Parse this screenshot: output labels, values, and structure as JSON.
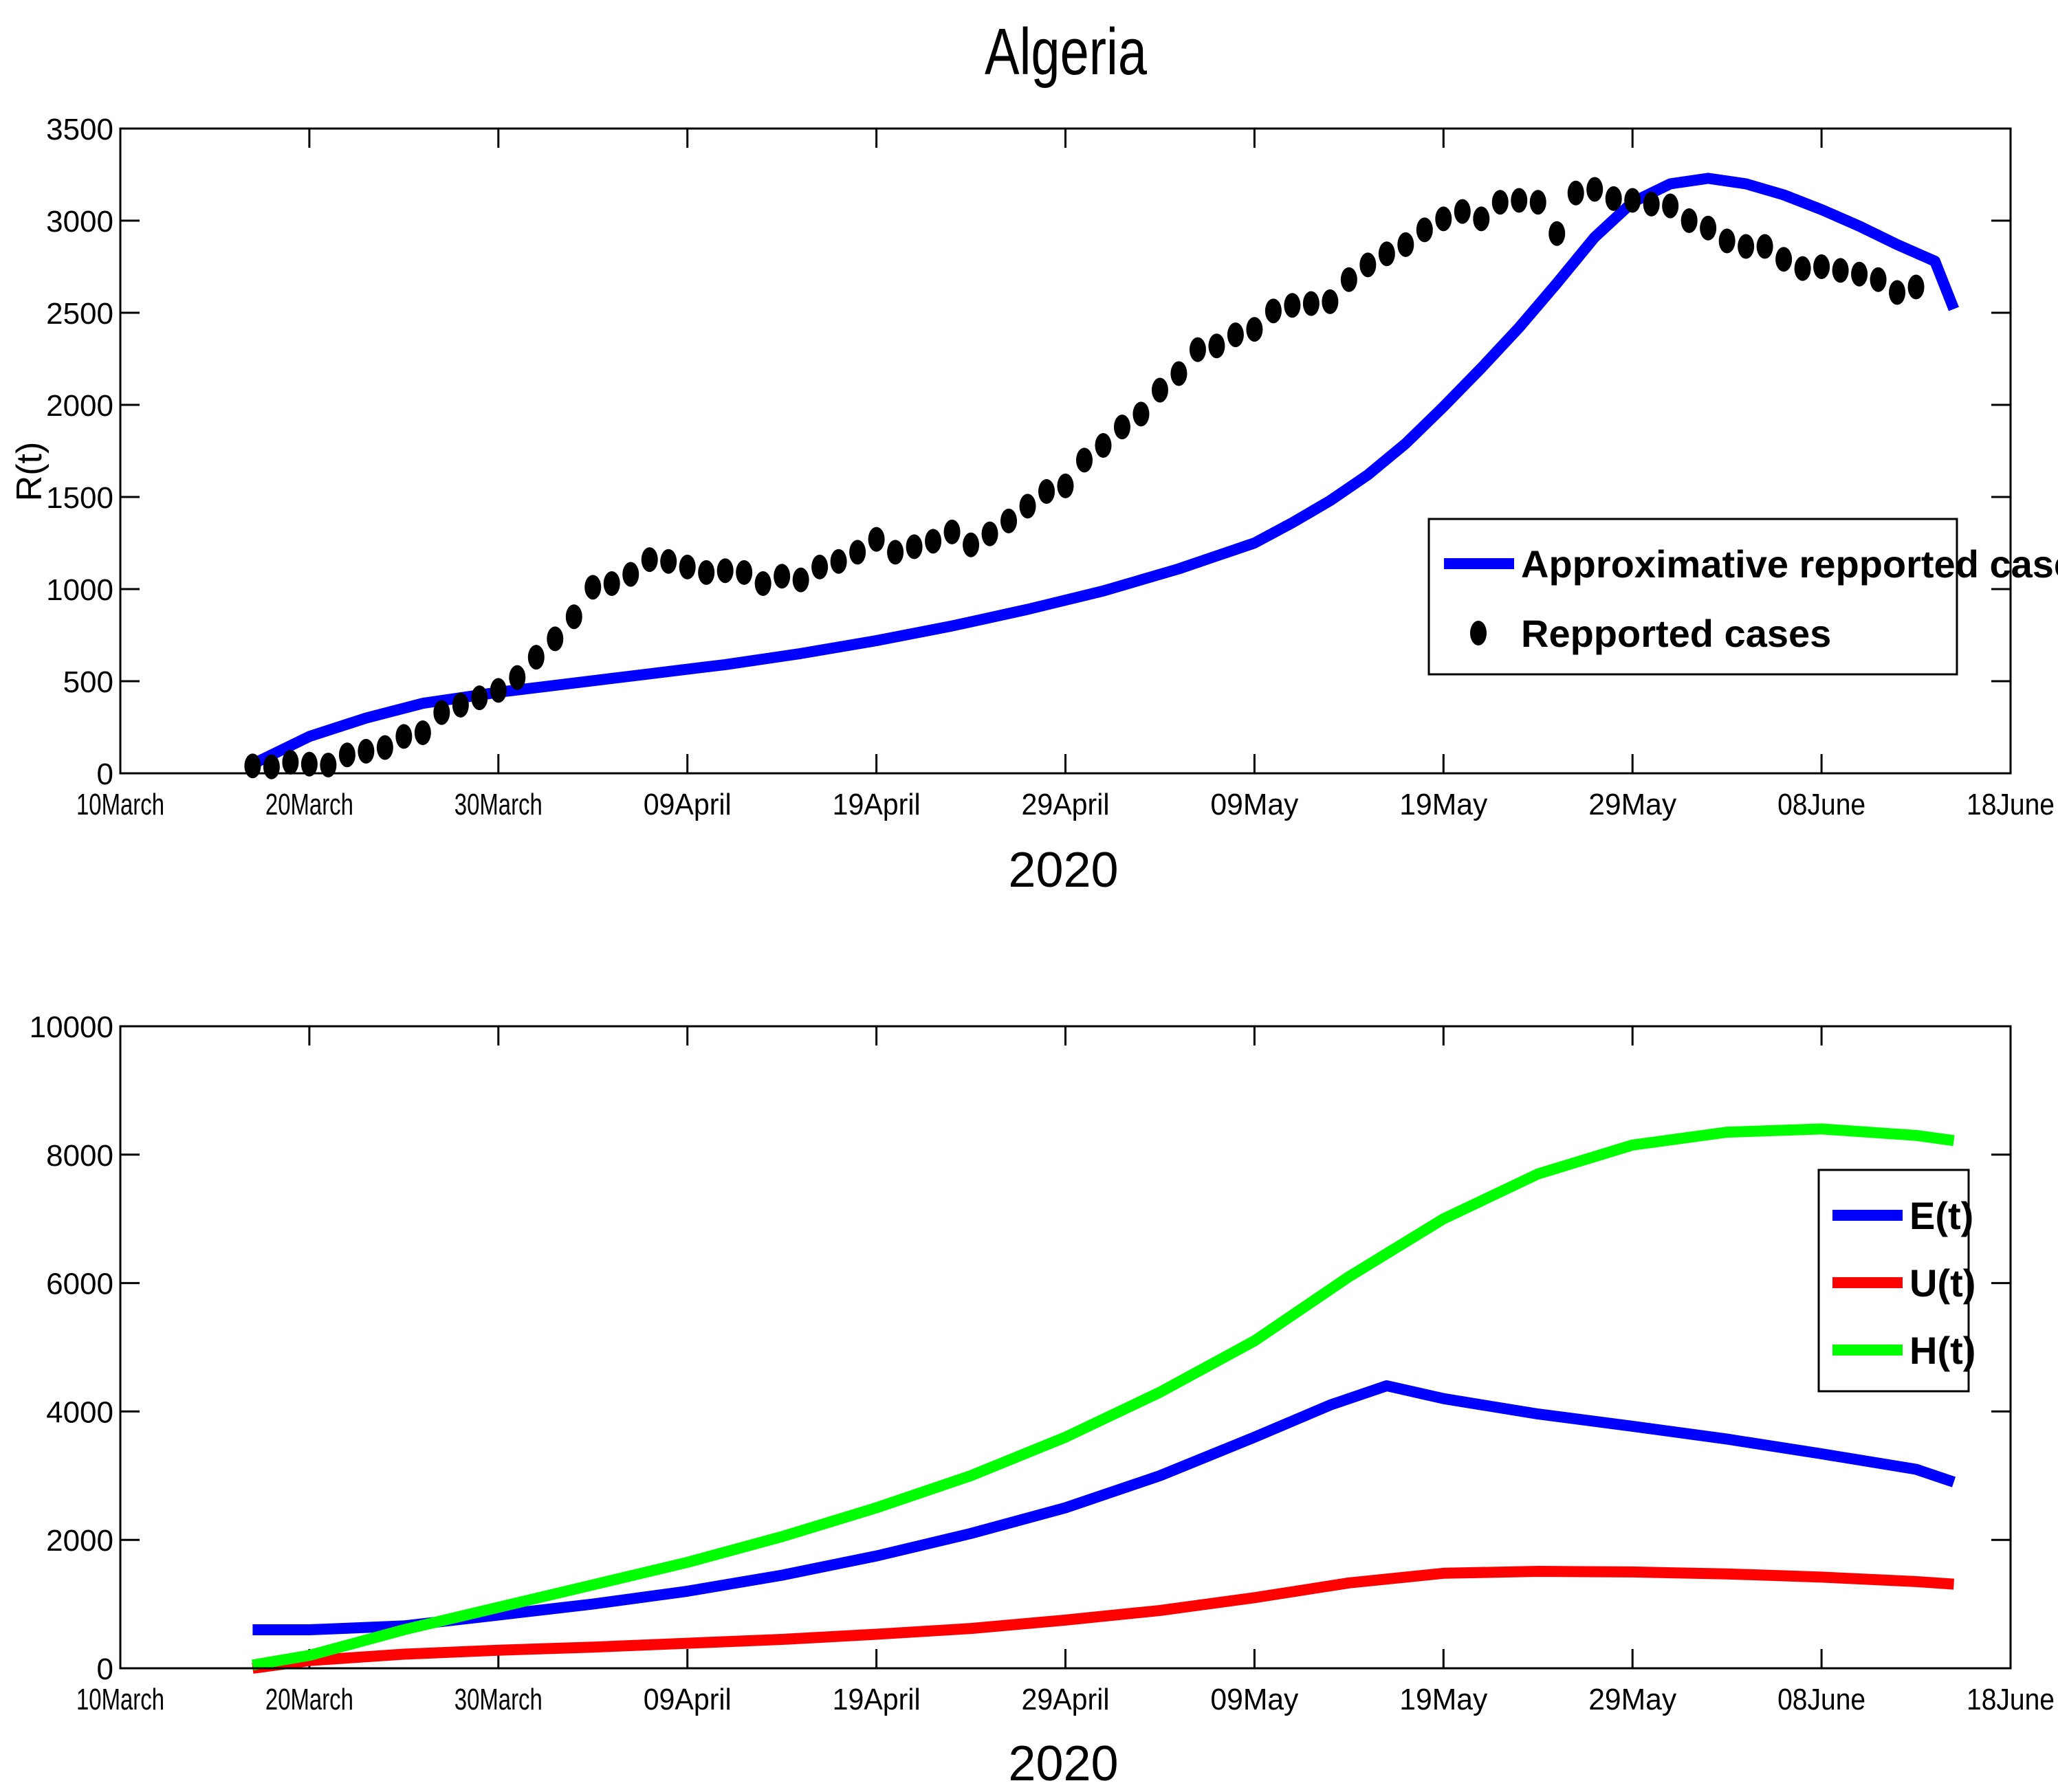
{
  "title": "Algeria",
  "x_categories": [
    "10March",
    "20March",
    "30March",
    "09April",
    "19April",
    "29April",
    "09May",
    "19May",
    "29May",
    "08June",
    "18June"
  ],
  "chart_data": [
    {
      "type": "line",
      "ylabel": "R(t)",
      "xlabel": "2020",
      "xlim": [
        0,
        100
      ],
      "ylim": [
        0,
        3500
      ],
      "yticks": [
        0,
        500,
        1000,
        1500,
        2000,
        2500,
        3000,
        3500
      ],
      "legend_position": "right",
      "series": [
        {
          "name": "Approximative repported cases",
          "style": "line",
          "color": "#0000ff",
          "x": [
            7,
            10,
            13,
            16,
            20,
            24,
            28,
            32,
            36,
            40,
            44,
            48,
            52,
            56,
            60,
            62,
            64,
            66,
            68,
            70,
            72,
            74,
            76,
            78,
            80,
            82,
            84,
            86,
            88,
            90,
            92,
            94,
            96,
            97
          ],
          "y": [
            50,
            200,
            300,
            380,
            440,
            490,
            540,
            590,
            650,
            720,
            800,
            890,
            990,
            1110,
            1250,
            1360,
            1480,
            1620,
            1790,
            1990,
            2200,
            2420,
            2660,
            2910,
            3100,
            3200,
            3230,
            3200,
            3140,
            3060,
            2970,
            2870,
            2780,
            2520
          ]
        },
        {
          "name": "Repported cases",
          "style": "markers",
          "color": "#000000",
          "x": [
            7,
            8,
            9,
            10,
            11,
            12,
            13,
            14,
            15,
            16,
            17,
            18,
            19,
            20,
            21,
            22,
            23,
            24,
            25,
            26,
            27,
            28,
            29,
            30,
            31,
            32,
            33,
            34,
            35,
            36,
            37,
            38,
            39,
            40,
            41,
            42,
            43,
            44,
            45,
            46,
            47,
            48,
            49,
            50,
            51,
            52,
            53,
            54,
            55,
            56,
            57,
            58,
            59,
            60,
            61,
            62,
            63,
            64,
            65,
            66,
            67,
            68,
            69,
            70,
            71,
            72,
            73,
            74,
            75,
            76,
            77,
            78,
            79,
            80,
            81,
            82,
            83,
            84,
            85,
            86,
            87,
            88,
            89,
            90,
            91,
            92,
            93,
            94,
            95
          ],
          "y": [
            40,
            35,
            60,
            50,
            45,
            100,
            120,
            140,
            200,
            220,
            330,
            370,
            410,
            450,
            520,
            630,
            730,
            850,
            1010,
            1030,
            1080,
            1160,
            1150,
            1120,
            1090,
            1100,
            1090,
            1030,
            1070,
            1050,
            1120,
            1150,
            1200,
            1270,
            1200,
            1230,
            1260,
            1310,
            1240,
            1300,
            1370,
            1450,
            1530,
            1560,
            1700,
            1780,
            1880,
            1950,
            2080,
            2170,
            2300,
            2320,
            2380,
            2410,
            2510,
            2540,
            2550,
            2560,
            2680,
            2760,
            2820,
            2870,
            2950,
            3010,
            3050,
            3010,
            3100,
            3110,
            3100,
            2930,
            3150,
            3170,
            3120,
            3110,
            3090,
            3080,
            3000,
            2960,
            2890,
            2860,
            2860,
            2790,
            2740,
            2750,
            2730,
            2710,
            2680,
            2610,
            2640
          ]
        }
      ]
    },
    {
      "type": "line",
      "ylabel": "",
      "xlabel": "2020",
      "xlim": [
        0,
        100
      ],
      "ylim": [
        0,
        10000
      ],
      "yticks": [
        0,
        2000,
        4000,
        6000,
        8000,
        10000
      ],
      "legend_position": "right",
      "series": [
        {
          "name": "E(t)",
          "color": "#0000ff",
          "x": [
            7,
            10,
            15,
            20,
            25,
            30,
            35,
            40,
            45,
            50,
            55,
            60,
            64,
            67,
            70,
            75,
            80,
            85,
            90,
            95,
            97
          ],
          "y": [
            600,
            600,
            660,
            830,
            1000,
            1200,
            1450,
            1750,
            2100,
            2500,
            3000,
            3600,
            4100,
            4400,
            4200,
            3960,
            3770,
            3570,
            3340,
            3100,
            2900
          ]
        },
        {
          "name": "U(t)",
          "color": "#ff0000",
          "x": [
            7,
            10,
            15,
            20,
            25,
            30,
            35,
            40,
            45,
            50,
            55,
            60,
            65,
            70,
            75,
            80,
            85,
            90,
            95,
            97
          ],
          "y": [
            0,
            120,
            220,
            280,
            330,
            390,
            450,
            530,
            620,
            750,
            900,
            1100,
            1330,
            1480,
            1510,
            1500,
            1470,
            1420,
            1350,
            1310
          ]
        },
        {
          "name": "H(t)",
          "color": "#00ff00",
          "x": [
            7,
            10,
            15,
            20,
            25,
            30,
            35,
            40,
            45,
            50,
            55,
            60,
            65,
            70,
            75,
            80,
            85,
            90,
            95,
            97
          ],
          "y": [
            50,
            200,
            600,
            950,
            1300,
            1650,
            2050,
            2500,
            3000,
            3600,
            4300,
            5100,
            6100,
            7000,
            7700,
            8150,
            8350,
            8400,
            8300,
            8220
          ]
        }
      ]
    }
  ]
}
